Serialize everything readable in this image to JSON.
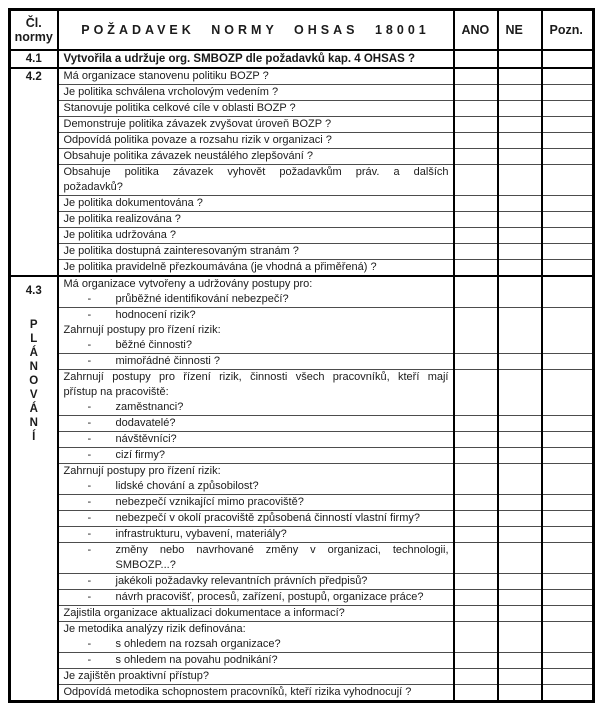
{
  "colors": {
    "border_strong": "#000000",
    "border_light": "#4d4d4d",
    "text": "#1b1b1b",
    "background": "#ffffff"
  },
  "table": {
    "bullet_char": "-",
    "header": {
      "norm_col_line1": "Čl.",
      "norm_col_line2": "normy",
      "requirement_col": "POŽADAVEK NORMY OHSAS 18001",
      "yes_col": "ANO",
      "no_col": "NE",
      "note_col": "Pozn."
    },
    "sections": [
      {
        "norm": "4.1",
        "vertical_label": "",
        "rows": [
          {
            "bold": true,
            "lines": [
              {
                "type": "q",
                "text": "Vytvořila a udržuje org. SMBOZP dle požadavků kap. 4 OHSAS ?"
              }
            ]
          }
        ]
      },
      {
        "norm": "4.2",
        "vertical_label": "",
        "rows": [
          {
            "lines": [
              {
                "type": "q",
                "text": "Má organizace stanovenu politiku BOZP ?"
              }
            ]
          },
          {
            "lines": [
              {
                "type": "q",
                "text": "Je politika schválena vrcholovým vedením ?"
              }
            ]
          },
          {
            "lines": [
              {
                "type": "q",
                "text": "Stanovuje politika celkové cíle v oblasti BOZP ?"
              }
            ]
          },
          {
            "lines": [
              {
                "type": "q",
                "text": "Demonstruje politika závazek zvyšovat úroveň BOZP ?"
              }
            ]
          },
          {
            "lines": [
              {
                "type": "q",
                "text": "Odpovídá politika povaze a rozsahu rizik v organizaci ?"
              }
            ]
          },
          {
            "lines": [
              {
                "type": "q",
                "text": "Obsahuje politika závazek neustálého zlepšování ?"
              }
            ]
          },
          {
            "lines": [
              {
                "type": "qj",
                "text": "Obsahuje politika závazek vyhovět požadavkům práv. a dalších"
              },
              {
                "type": "q",
                "text": "požadavků?"
              }
            ]
          },
          {
            "lines": [
              {
                "type": "q",
                "text": "Je politika dokumentována ?"
              }
            ]
          },
          {
            "lines": [
              {
                "type": "q",
                "text": "Je politika realizována ?"
              }
            ]
          },
          {
            "lines": [
              {
                "type": "q",
                "text": "Je politika udržována ?"
              }
            ]
          },
          {
            "lines": [
              {
                "type": "q",
                "text": "Je politika dostupná zainteresovaným stranám ?"
              }
            ]
          },
          {
            "lines": [
              {
                "type": "q",
                "text": "Je politika pravidelně přezkoumávána (je vhodná a přiměřená) ?"
              }
            ]
          }
        ]
      },
      {
        "norm": "4.3",
        "vertical_label": "PLÁNOVÁNÍ",
        "rows": [
          {
            "lines": [
              {
                "type": "q",
                "text": "Má organizace vytvořeny a udržovány postupy pro:"
              },
              {
                "type": "b",
                "text": "průběžné identifikování nebezpečí?"
              }
            ]
          },
          {
            "lines": [
              {
                "type": "b",
                "text": "hodnocení rizik?"
              },
              {
                "type": "q",
                "text": "Zahrnují postupy pro řízení rizik:"
              },
              {
                "type": "b",
                "text": "běžné činnosti?"
              }
            ]
          },
          {
            "lines": [
              {
                "type": "b",
                "text": "mimořádné činnosti ?"
              }
            ]
          },
          {
            "lines": [
              {
                "type": "qj",
                "text": "Zahrnují postupy pro řízení rizik, činnosti všech pracovníků, kteří mají"
              },
              {
                "type": "q",
                "text": "přístup na pracoviště:"
              },
              {
                "type": "b",
                "text": "zaměstnanci?"
              }
            ]
          },
          {
            "lines": [
              {
                "type": "b",
                "text": "dodavatelé?"
              }
            ]
          },
          {
            "lines": [
              {
                "type": "b",
                "text": "návštěvníci?"
              }
            ]
          },
          {
            "lines": [
              {
                "type": "b",
                "text": "cizí firmy?"
              }
            ]
          },
          {
            "lines": [
              {
                "type": "q",
                "text": "Zahrnují postupy pro řízení rizik:"
              },
              {
                "type": "b",
                "text": "lidské chování a způsobilost?"
              }
            ]
          },
          {
            "lines": [
              {
                "type": "b",
                "text": "nebezpečí vznikající mimo pracoviště?"
              }
            ]
          },
          {
            "lines": [
              {
                "type": "b",
                "text": "nebezpečí v okolí pracoviště způsobená činností vlastní firmy?"
              }
            ]
          },
          {
            "lines": [
              {
                "type": "b",
                "text": "infrastrukturu, vybavení, materiály?"
              }
            ]
          },
          {
            "lines": [
              {
                "type": "bj",
                "text": "změny nebo navrhované změny v organizaci, technologii,"
              },
              {
                "type": "bc",
                "text": "SMBOZP...?"
              }
            ]
          },
          {
            "lines": [
              {
                "type": "b",
                "text": "jakékoli požadavky relevantních právních předpisů?"
              }
            ]
          },
          {
            "lines": [
              {
                "type": "b",
                "text": "návrh pracovišť, procesů, zařízení, postupů, organizace práce?"
              }
            ]
          },
          {
            "lines": [
              {
                "type": "q",
                "text": "Zajistila organizace aktualizaci dokumentace a informací?"
              }
            ]
          },
          {
            "lines": [
              {
                "type": "q",
                "text": "Je metodika analýzy rizik definována:"
              },
              {
                "type": "b",
                "text": "s ohledem na rozsah organizace?"
              }
            ]
          },
          {
            "lines": [
              {
                "type": "b",
                "text": "s ohledem na povahu podnikání?"
              }
            ]
          },
          {
            "lines": [
              {
                "type": "q",
                "text": "Je zajištěn proaktivní přístup?"
              }
            ]
          },
          {
            "lines": [
              {
                "type": "q",
                "text": "Odpovídá metodika schopnostem pracovníků, kteří rizika vyhodnocují ?"
              }
            ]
          }
        ]
      }
    ]
  }
}
